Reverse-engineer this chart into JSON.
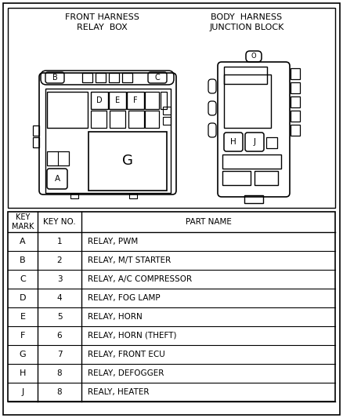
{
  "title_left": "FRONT HARNESS\nRELAY  BOX",
  "title_right": "BODY  HARNESS\nJUNCTION BLOCK",
  "table_headers": [
    "KEY\nMARK",
    "KEY NO.",
    "PART NAME"
  ],
  "table_rows": [
    [
      "A",
      "1",
      "RELAY, PWM"
    ],
    [
      "B",
      "2",
      "RELAY, M/T STARTER"
    ],
    [
      "C",
      "3",
      "RELAY, A/C COMPRESSOR"
    ],
    [
      "D",
      "4",
      "RELAY, FOG LAMP"
    ],
    [
      "E",
      "5",
      "RELAY, HORN"
    ],
    [
      "F",
      "6",
      "RELAY, HORN (THEFT)"
    ],
    [
      "G",
      "7",
      "RELAY, FRONT ECU"
    ],
    [
      "H",
      "8",
      "RELAY, DEFOGGER"
    ],
    [
      "J",
      "8",
      "REALY, HEATER"
    ]
  ],
  "bg_color": "#ffffff",
  "line_color": "#000000",
  "text_color": "#000000"
}
